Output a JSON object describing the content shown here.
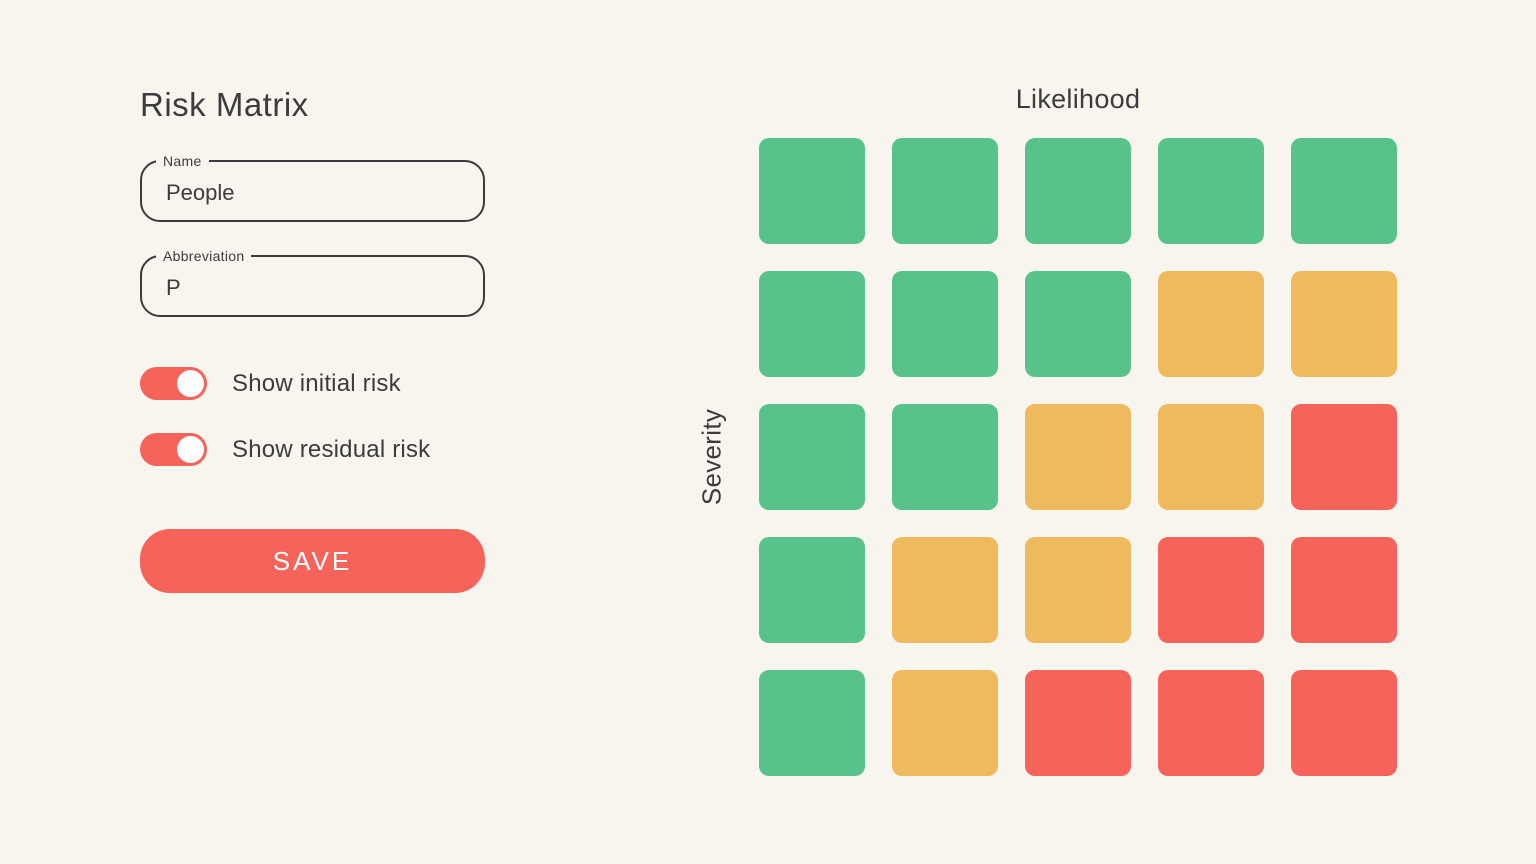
{
  "app": {
    "title": "Risk Matrix"
  },
  "form": {
    "name_field": {
      "label": "Name",
      "value": "People"
    },
    "abbreviation_field": {
      "label": "Abbreviation",
      "value": "P"
    },
    "toggles": [
      {
        "label": "Show initial risk",
        "state": "on"
      },
      {
        "label": "Show residual risk",
        "state": "on"
      }
    ],
    "save_label": "SAVE"
  },
  "matrix": {
    "x_axis_label": "Likelihood",
    "y_axis_label": "Severity",
    "rows": [
      [
        "green",
        "green",
        "green",
        "green",
        "green"
      ],
      [
        "green",
        "green",
        "green",
        "amber",
        "amber"
      ],
      [
        "green",
        "green",
        "amber",
        "amber",
        "red"
      ],
      [
        "green",
        "amber",
        "amber",
        "red",
        "red"
      ],
      [
        "green",
        "amber",
        "red",
        "red",
        "red"
      ]
    ]
  },
  "colors": {
    "green": "#57C28A",
    "amber": "#EFB95D",
    "red": "#F5635A",
    "background": "#F8F5EF",
    "text": "#3C3C3C"
  }
}
